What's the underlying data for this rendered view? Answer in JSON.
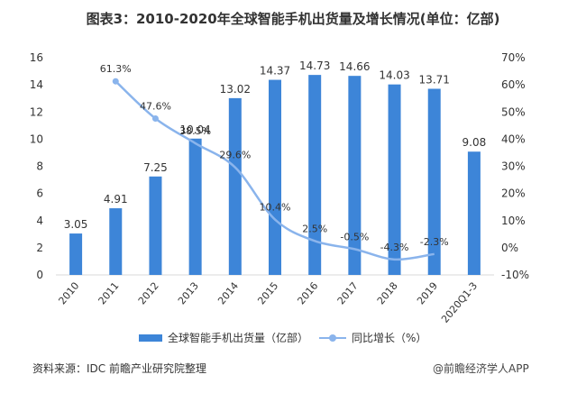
{
  "title": "图表3：2010-2020年全球智能手机出货量及增长情况(单位：亿部)",
  "source": "资料来源：IDC 前瞻产业研究院整理",
  "brand": "@前瞻经济学人APP",
  "legend": {
    "bar_label": "全球智能手机出货量（亿部）",
    "line_label": "同比增长（%）"
  },
  "colors": {
    "bar": "#3d85d8",
    "line": "#8ab4ec",
    "axis": "#d9d9d9",
    "text": "#333333"
  },
  "chart_data": {
    "type": "bar",
    "title": "2010-2020年全球智能手机出货量及增长情况(单位：亿部)",
    "categories": [
      "2010",
      "2011",
      "2012",
      "2013",
      "2014",
      "2015",
      "2016",
      "2017",
      "2018",
      "2019",
      "2020Q1-3"
    ],
    "series": [
      {
        "name": "全球智能手机出货量（亿部）",
        "type": "bar",
        "axis": "left",
        "values": [
          3.05,
          4.91,
          7.25,
          10.04,
          13.02,
          14.37,
          14.73,
          14.66,
          14.03,
          13.71,
          9.08
        ],
        "labels": [
          "3.05",
          "4.91",
          "7.25",
          "10.04",
          "13.02",
          "14.37",
          "14.73",
          "14.66",
          "14.03",
          "13.71",
          "9.08"
        ]
      },
      {
        "name": "同比增长（%）",
        "type": "line",
        "axis": "right",
        "smooth": true,
        "values": [
          null,
          61.3,
          47.6,
          38.5,
          29.6,
          10.4,
          2.5,
          -0.5,
          -4.3,
          -2.3,
          null
        ],
        "labels": [
          "",
          "61.3%",
          "47.6%",
          "38.5%",
          "29.6%",
          "10.4%",
          "2.5%",
          "-0.5%",
          "-4.3%",
          "-2.3%",
          ""
        ]
      }
    ],
    "y_left": {
      "min": 0,
      "max": 16,
      "ticks": [
        "0",
        "2",
        "4",
        "6",
        "8",
        "10",
        "12",
        "14",
        "16"
      ]
    },
    "y_right": {
      "min": -10,
      "max": 70,
      "ticks": [
        "-10%",
        "0%",
        "10%",
        "20%",
        "30%",
        "40%",
        "50%",
        "60%",
        "70%"
      ]
    },
    "grid": false,
    "legend_position": "bottom"
  }
}
